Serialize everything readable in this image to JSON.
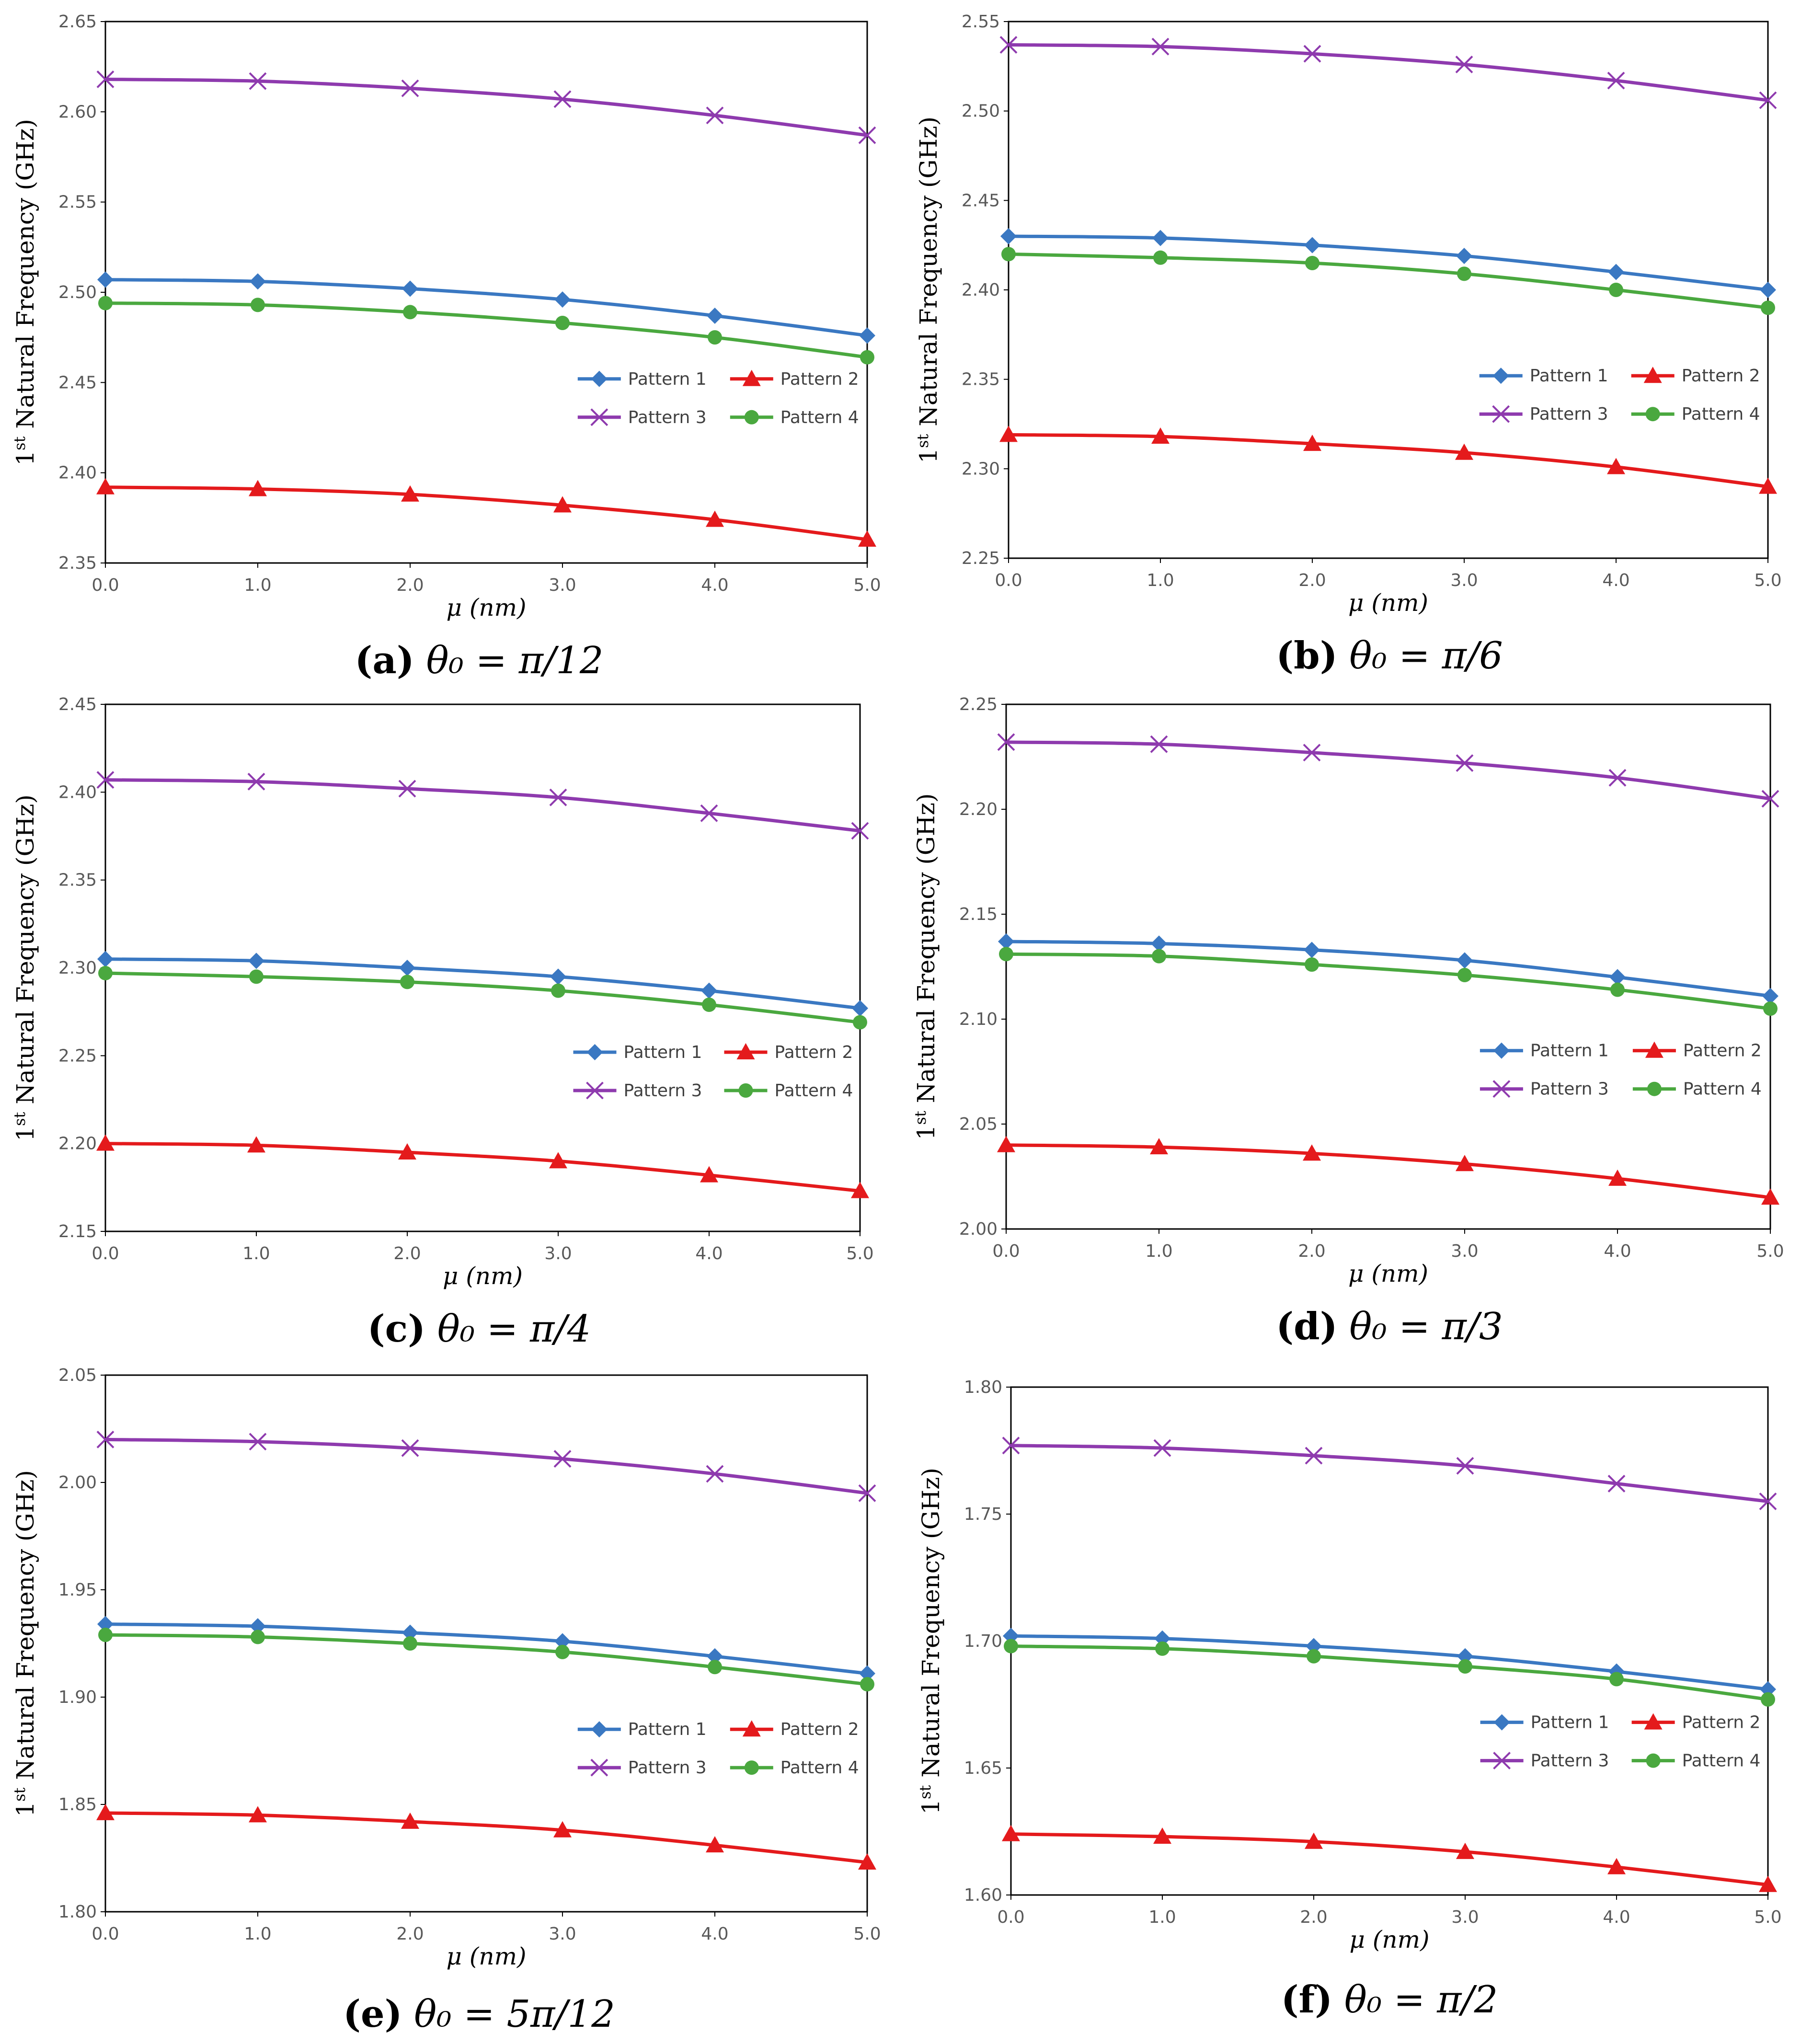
{
  "series_styles": [
    {
      "name": "Pattern 1",
      "color": "#3a78c2",
      "marker": "diamond"
    },
    {
      "name": "Pattern 2",
      "color": "#e41a1c",
      "marker": "triangle"
    },
    {
      "name": "Pattern 3",
      "color": "#8e3aae",
      "marker": "x"
    },
    {
      "name": "Pattern 4",
      "color": "#4aa83f",
      "marker": "circle"
    }
  ],
  "chart_data": [
    {
      "type": "line",
      "panel": "a",
      "caption": {
        "letter": "(a)",
        "text": "θ₀ = π/12"
      },
      "xlabel": "μ (nm)",
      "ylabel": {
        "pre": "1",
        "sup": "st",
        "post": " Natural Frequency (GHz)"
      },
      "x": [
        0,
        1,
        2,
        3,
        4,
        5
      ],
      "xticks": [
        "0.0",
        "1.0",
        "2.0",
        "3.0",
        "4.0",
        "5.0"
      ],
      "ylim": [
        2.35,
        2.65
      ],
      "yticks": [
        "2.35",
        "2.40",
        "2.45",
        "2.50",
        "2.55",
        "2.60",
        "2.65"
      ],
      "legend_position": "center-right",
      "series": [
        {
          "name": "Pattern 1",
          "values": [
            2.507,
            2.506,
            2.502,
            2.496,
            2.487,
            2.476
          ]
        },
        {
          "name": "Pattern 2",
          "values": [
            2.392,
            2.391,
            2.388,
            2.382,
            2.374,
            2.363
          ]
        },
        {
          "name": "Pattern 3",
          "values": [
            2.618,
            2.617,
            2.613,
            2.607,
            2.598,
            2.587
          ]
        },
        {
          "name": "Pattern 4",
          "values": [
            2.494,
            2.493,
            2.489,
            2.483,
            2.475,
            2.464
          ]
        }
      ]
    },
    {
      "type": "line",
      "panel": "b",
      "caption": {
        "letter": "(b)",
        "text": "θ₀ = π/6"
      },
      "xlabel": "μ (nm)",
      "ylabel": {
        "pre": "1",
        "sup": "st",
        "post": " Natural Frequency (GHz)"
      },
      "x": [
        0,
        1,
        2,
        3,
        4,
        5
      ],
      "xticks": [
        "0.0",
        "1.0",
        "2.0",
        "3.0",
        "4.0",
        "5.0"
      ],
      "ylim": [
        2.25,
        2.55
      ],
      "yticks": [
        "2.25",
        "2.30",
        "2.35",
        "2.40",
        "2.45",
        "2.50",
        "2.55"
      ],
      "legend_position": "center-right",
      "series": [
        {
          "name": "Pattern 1",
          "values": [
            2.43,
            2.429,
            2.425,
            2.419,
            2.41,
            2.4
          ]
        },
        {
          "name": "Pattern 2",
          "values": [
            2.319,
            2.318,
            2.314,
            2.309,
            2.301,
            2.29
          ]
        },
        {
          "name": "Pattern 3",
          "values": [
            2.537,
            2.536,
            2.532,
            2.526,
            2.517,
            2.506
          ]
        },
        {
          "name": "Pattern 4",
          "values": [
            2.42,
            2.418,
            2.415,
            2.409,
            2.4,
            2.39
          ]
        }
      ]
    },
    {
      "type": "line",
      "panel": "c",
      "caption": {
        "letter": "(c)",
        "text": "θ₀ =  π/4"
      },
      "xlabel": "μ (nm)",
      "ylabel": {
        "pre": "1",
        "sup": "st",
        "post": " Natural Frequency (GHz)"
      },
      "x": [
        0,
        1,
        2,
        3,
        4,
        5
      ],
      "xticks": [
        "0.0",
        "1.0",
        "2.0",
        "3.0",
        "4.0",
        "5.0"
      ],
      "ylim": [
        2.15,
        2.45
      ],
      "yticks": [
        "2.15",
        "2.20",
        "2.25",
        "2.30",
        "2.35",
        "2.40",
        "2.45"
      ],
      "legend_position": "center-right",
      "series": [
        {
          "name": "Pattern 1",
          "values": [
            2.305,
            2.304,
            2.3,
            2.295,
            2.287,
            2.277
          ]
        },
        {
          "name": "Pattern 2",
          "values": [
            2.2,
            2.199,
            2.195,
            2.19,
            2.182,
            2.173
          ]
        },
        {
          "name": "Pattern 3",
          "values": [
            2.407,
            2.406,
            2.402,
            2.397,
            2.388,
            2.378
          ]
        },
        {
          "name": "Pattern 4",
          "values": [
            2.297,
            2.295,
            2.292,
            2.287,
            2.279,
            2.269
          ]
        }
      ]
    },
    {
      "type": "line",
      "panel": "d",
      "caption": {
        "letter": "(d)",
        "text": "θ₀ = π/3"
      },
      "xlabel": "μ (nm)",
      "ylabel": {
        "pre": "1",
        "sup": "st",
        "post": " Natural Frequency (GHz)"
      },
      "x": [
        0,
        1,
        2,
        3,
        4,
        5
      ],
      "xticks": [
        "0.0",
        "1.0",
        "2.0",
        "3.0",
        "4.0",
        "5.0"
      ],
      "ylim": [
        2.0,
        2.25
      ],
      "yticks": [
        "2.00",
        "2.05",
        "2.10",
        "2.15",
        "2.20",
        "2.25"
      ],
      "legend_position": "center-right",
      "series": [
        {
          "name": "Pattern 1",
          "values": [
            2.137,
            2.136,
            2.133,
            2.128,
            2.12,
            2.111
          ]
        },
        {
          "name": "Pattern 2",
          "values": [
            2.04,
            2.039,
            2.036,
            2.031,
            2.024,
            2.015
          ]
        },
        {
          "name": "Pattern 3",
          "values": [
            2.232,
            2.231,
            2.227,
            2.222,
            2.215,
            2.205
          ]
        },
        {
          "name": "Pattern 4",
          "values": [
            2.131,
            2.13,
            2.126,
            2.121,
            2.114,
            2.105
          ]
        }
      ]
    },
    {
      "type": "line",
      "panel": "e",
      "caption": {
        "letter": "(e)",
        "text": "θ₀ = 5π/12"
      },
      "xlabel": "μ (nm)",
      "ylabel": {
        "pre": "1",
        "sup": "st",
        "post": " Natural Frequency (GHz)"
      },
      "x": [
        0,
        1,
        2,
        3,
        4,
        5
      ],
      "xticks": [
        "0.0",
        "1.0",
        "2.0",
        "3.0",
        "4.0",
        "5.0"
      ],
      "ylim": [
        1.8,
        2.05
      ],
      "yticks": [
        "1.80",
        "1.85",
        "1.90",
        "1.95",
        "2.00",
        "2.05"
      ],
      "legend_position": "center-right",
      "series": [
        {
          "name": "Pattern 1",
          "values": [
            1.934,
            1.933,
            1.93,
            1.926,
            1.919,
            1.911
          ]
        },
        {
          "name": "Pattern 2",
          "values": [
            1.846,
            1.845,
            1.842,
            1.838,
            1.831,
            1.823
          ]
        },
        {
          "name": "Pattern 3",
          "values": [
            2.02,
            2.019,
            2.016,
            2.011,
            2.004,
            1.995
          ]
        },
        {
          "name": "Pattern 4",
          "values": [
            1.929,
            1.928,
            1.925,
            1.921,
            1.914,
            1.906
          ]
        }
      ]
    },
    {
      "type": "line",
      "panel": "f",
      "caption": {
        "letter": "(f)",
        "text": "θ₀ =  π/2"
      },
      "xlabel": "μ (nm)",
      "ylabel": {
        "pre": "1",
        "sup": "st",
        "post": " Natural Frequency (GHz)"
      },
      "x": [
        0,
        1,
        2,
        3,
        4,
        5
      ],
      "xticks": [
        "0.0",
        "1.0",
        "2.0",
        "3.0",
        "4.0",
        "5.0"
      ],
      "ylim": [
        1.6,
        1.8
      ],
      "yticks": [
        "1.60",
        "1.65",
        "1.70",
        "1.75",
        "1.80"
      ],
      "legend_position": "center-right",
      "series": [
        {
          "name": "Pattern 1",
          "values": [
            1.702,
            1.701,
            1.698,
            1.694,
            1.688,
            1.681
          ]
        },
        {
          "name": "Pattern 2",
          "values": [
            1.624,
            1.623,
            1.621,
            1.617,
            1.611,
            1.604
          ]
        },
        {
          "name": "Pattern 3",
          "values": [
            1.777,
            1.776,
            1.773,
            1.769,
            1.762,
            1.755
          ]
        },
        {
          "name": "Pattern 4",
          "values": [
            1.698,
            1.697,
            1.694,
            1.69,
            1.685,
            1.677
          ]
        }
      ]
    }
  ]
}
